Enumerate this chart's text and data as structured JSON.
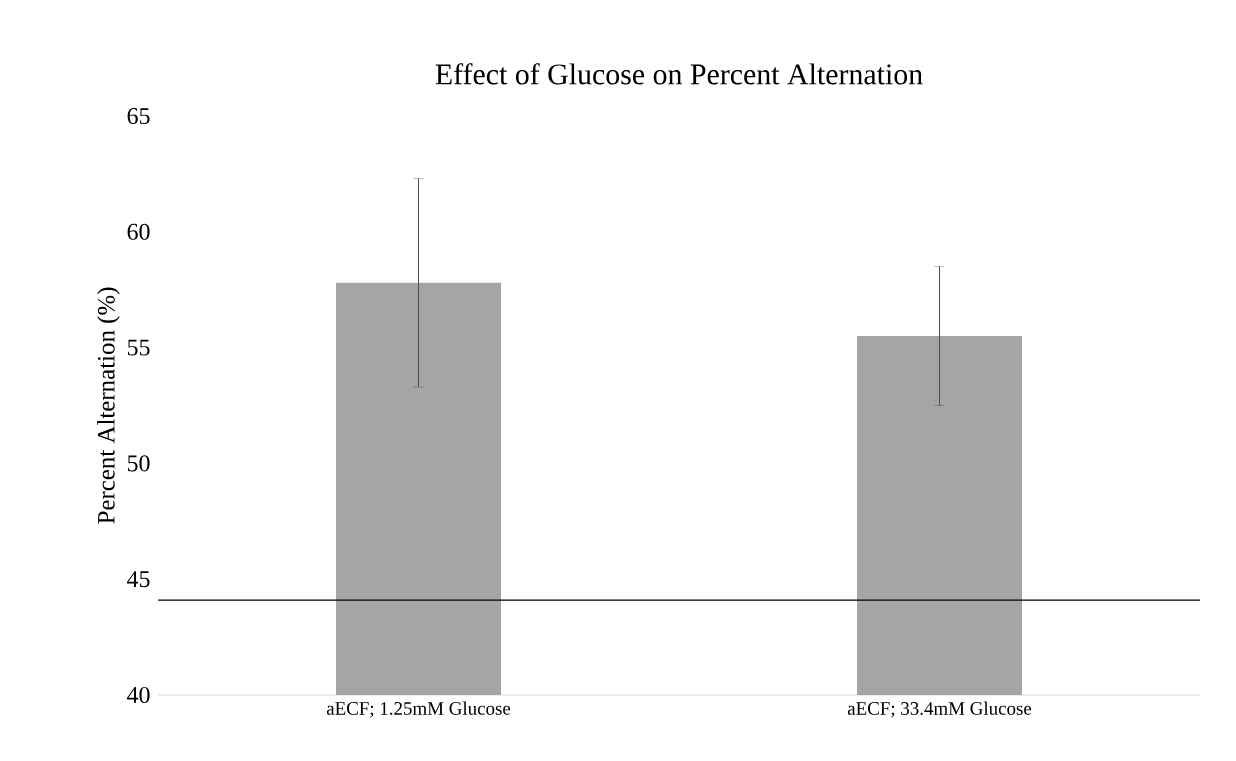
{
  "chart_data": {
    "type": "bar",
    "title": "Effect of Glucose on Percent Alternation",
    "ylabel": "Percent Alternation  (%)",
    "categories": [
      "aECF; 1.25mM Glucose",
      "aECF; 33.4mM Glucose"
    ],
    "values": [
      57.8,
      55.5
    ],
    "errors": [
      4.5,
      3.0
    ],
    "color": "#a5a5a5",
    "ylim": [
      40,
      65
    ],
    "yticks": [
      40,
      45,
      50,
      55,
      60,
      65
    ],
    "ref_lines": [
      {
        "axis": "y",
        "value": 44.1,
        "color": "#000000"
      }
    ]
  }
}
